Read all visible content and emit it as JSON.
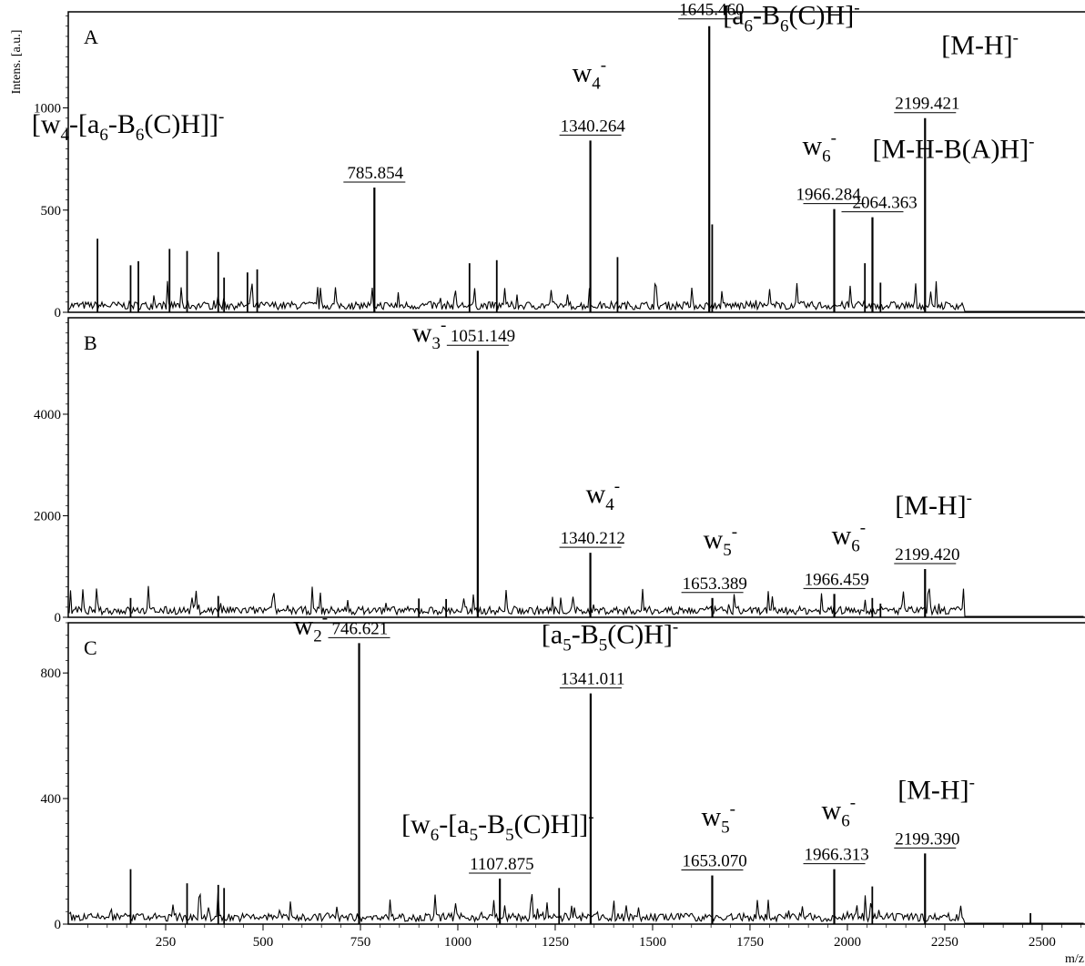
{
  "chart_data": {
    "type": "line",
    "ylabel": "Intens. [a.u.]",
    "xlabel": "m/z",
    "xlim": [
      0,
      2610
    ],
    "x_ticks": [
      250,
      500,
      750,
      1000,
      1250,
      1500,
      1750,
      2000,
      2250,
      2500
    ],
    "x_tick_labels": [
      "250",
      "500",
      "750",
      "1000",
      "1250",
      "1500",
      "1750",
      "2000",
      "2250",
      "2500"
    ],
    "panels": [
      {
        "panel": "A",
        "ylim": [
          0,
          1470
        ],
        "y_ticks": [
          0,
          500,
          1000
        ],
        "y_tick_labels": [
          "0",
          "500",
          "1000"
        ],
        "peaks": [
          {
            "mz": 785.854,
            "intensity": 610,
            "label": "785.854",
            "ion": "[w4-[a6-B6(C)H]]-"
          },
          {
            "mz": 1340.264,
            "intensity": 840,
            "label": "1340.264",
            "ion": "w4-"
          },
          {
            "mz": 1645.46,
            "intensity": 1400,
            "label": "1645.460",
            "ion": "[a6-B6(C)H]-"
          },
          {
            "mz": 1966.284,
            "intensity": 505,
            "label": "1966.284",
            "ion": "w6-"
          },
          {
            "mz": 2064.363,
            "intensity": 465,
            "label": "2064.363",
            "ion": "[M-H-B(A)H]-"
          },
          {
            "mz": 2199.421,
            "intensity": 950,
            "label": "2199.421",
            "ion": "[M-H]-"
          }
        ],
        "minor_peaks": [
          {
            "mz": 75,
            "intensity": 360
          },
          {
            "mz": 160,
            "intensity": 230
          },
          {
            "mz": 180,
            "intensity": 250
          },
          {
            "mz": 260,
            "intensity": 310
          },
          {
            "mz": 305,
            "intensity": 300
          },
          {
            "mz": 385,
            "intensity": 295
          },
          {
            "mz": 400,
            "intensity": 170
          },
          {
            "mz": 460,
            "intensity": 195
          },
          {
            "mz": 485,
            "intensity": 210
          },
          {
            "mz": 1030,
            "intensity": 240
          },
          {
            "mz": 1100,
            "intensity": 255
          },
          {
            "mz": 1410,
            "intensity": 270
          },
          {
            "mz": 1653,
            "intensity": 430
          },
          {
            "mz": 2045,
            "intensity": 240
          },
          {
            "mz": 2085,
            "intensity": 145
          }
        ]
      },
      {
        "panel": "B",
        "ylim": [
          0,
          5900
        ],
        "y_ticks": [
          0,
          2000,
          4000
        ],
        "y_tick_labels": [
          "0",
          "2000",
          "4000"
        ],
        "peaks": [
          {
            "mz": 1051.149,
            "intensity": 5250,
            "label": "1051.149",
            "ion": "w3-"
          },
          {
            "mz": 1340.212,
            "intensity": 1270,
            "label": "1340.212",
            "ion": "w4-"
          },
          {
            "mz": 1653.389,
            "intensity": 380,
            "label": "1653.389",
            "ion": "w5-"
          },
          {
            "mz": 1966.459,
            "intensity": 460,
            "label": "1966.459",
            "ion": "w6-"
          },
          {
            "mz": 2199.42,
            "intensity": 950,
            "label": "2199.420",
            "ion": "[M-H]-"
          }
        ],
        "minor_peaks": [
          {
            "mz": 160,
            "intensity": 380
          },
          {
            "mz": 385,
            "intensity": 420
          },
          {
            "mz": 900,
            "intensity": 370
          },
          {
            "mz": 970,
            "intensity": 360
          },
          {
            "mz": 2064,
            "intensity": 380
          },
          {
            "mz": 2085,
            "intensity": 270
          }
        ]
      },
      {
        "panel": "C",
        "ylim": [
          0,
          960
        ],
        "y_ticks": [
          0,
          400,
          800
        ],
        "y_tick_labels": [
          "0",
          "400",
          "800"
        ],
        "peaks": [
          {
            "mz": 746.621,
            "intensity": 895,
            "label": "746.621",
            "ion": "w2-"
          },
          {
            "mz": 1107.875,
            "intensity": 145,
            "label": "1107.875",
            "ion": "[w6-[a5-B5(C)H]]-"
          },
          {
            "mz": 1341.011,
            "intensity": 735,
            "label": "1341.011",
            "ion": "[a5-B5(C)H]-"
          },
          {
            "mz": 1653.07,
            "intensity": 155,
            "label": "1653.070",
            "ion": "w5-"
          },
          {
            "mz": 1966.313,
            "intensity": 175,
            "label": "1966.313",
            "ion": "w6-"
          },
          {
            "mz": 2199.39,
            "intensity": 225,
            "label": "2199.390",
            "ion": "[M-H]-"
          }
        ],
        "minor_peaks": [
          {
            "mz": 160,
            "intensity": 175
          },
          {
            "mz": 305,
            "intensity": 130
          },
          {
            "mz": 385,
            "intensity": 125
          },
          {
            "mz": 400,
            "intensity": 115
          },
          {
            "mz": 1260,
            "intensity": 115
          },
          {
            "mz": 2064,
            "intensity": 120
          },
          {
            "mz": 2470,
            "intensity": 35
          }
        ]
      }
    ]
  }
}
